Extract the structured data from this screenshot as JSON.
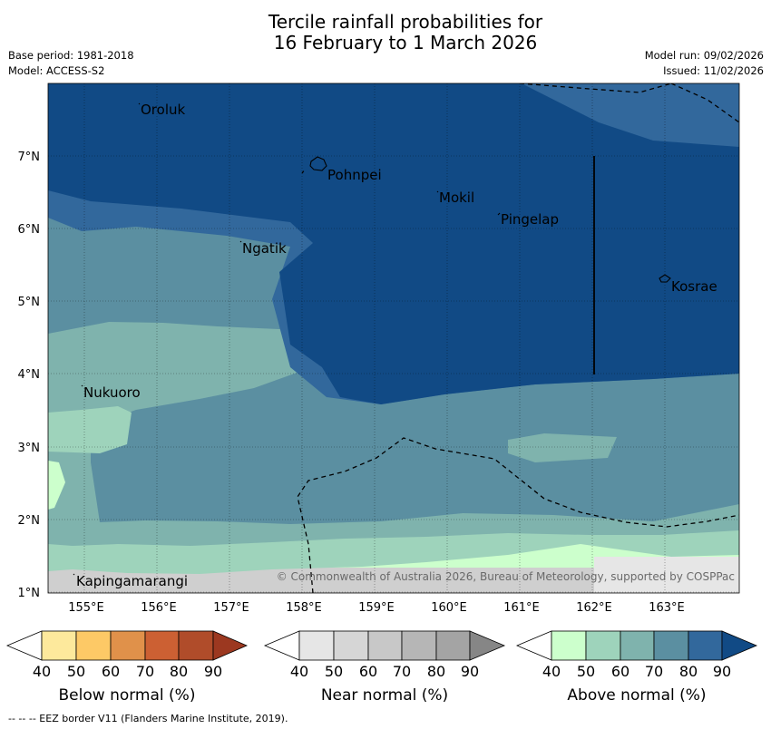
{
  "title": {
    "line1": "Tercile rainfall probabilities for",
    "line2": "16 February to 1 March 2026"
  },
  "meta": {
    "base_period": "Base period: 1981-2018",
    "model": "Model: ACCESS-S2",
    "model_run": "Model run: 09/02/2026",
    "issued": "Issued: 11/02/2026"
  },
  "map": {
    "lon_labels": [
      "155°E",
      "156°E",
      "157°E",
      "158°E",
      "159°E",
      "160°E",
      "161°E",
      "162°E",
      "163°E"
    ],
    "lat_labels": [
      "7°N",
      "6°N",
      "5°N",
      "4°N",
      "3°N",
      "2°N",
      "1°N"
    ],
    "places": [
      "Oroluk",
      "Pohnpei",
      "Mokil",
      "Pingelap",
      "Ngatik",
      "Kosrae",
      "Nukuoro",
      "Kapingamarangi"
    ],
    "copyright": "© Commonwealth of Australia 2026, Bureau of Meteorology, supported by COSPPac"
  },
  "legend": {
    "below": {
      "title": "Below normal (%)",
      "ticks": [
        "40",
        "50",
        "60",
        "70",
        "80",
        "90"
      ],
      "colors": [
        "#ffffff",
        "#fde99c",
        "#fdc966",
        "#e0914a",
        "#cc6033",
        "#b04c2a",
        "#9c3820"
      ]
    },
    "near": {
      "title": "Near normal (%)",
      "ticks": [
        "40",
        "50",
        "60",
        "70",
        "80",
        "90"
      ],
      "colors": [
        "#ffffff",
        "#e6e6e6",
        "#d6d6d6",
        "#c8c8c8",
        "#b6b6b6",
        "#a4a4a4",
        "#868686"
      ]
    },
    "above": {
      "title": "Above normal (%)",
      "ticks": [
        "40",
        "50",
        "60",
        "70",
        "80",
        "90"
      ],
      "colors": [
        "#ffffff",
        "#ccffcc",
        "#9ed3bb",
        "#7fb3ad",
        "#5b8fa1",
        "#32689c",
        "#114a85"
      ]
    }
  },
  "footnote": "--  --  -- EEZ border V11 (Flanders Marine Institute, 2019)."
}
